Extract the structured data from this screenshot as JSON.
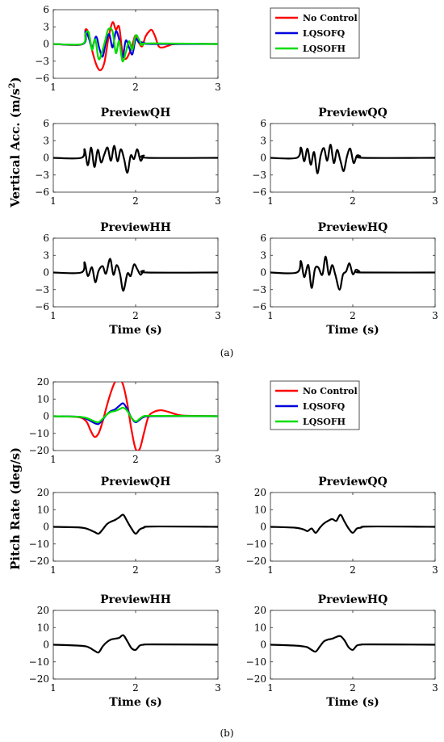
{
  "figure": {
    "caption_a": "(a)",
    "caption_b": "(b)",
    "ylabel_a": "Vertical Acc. (m/s",
    "ylabel_a_sup": "2",
    "ylabel_a_end": ")",
    "ylabel_b": "Pitch Rate (deg/s)"
  },
  "chart_data": [
    {
      "id": "a-main",
      "type": "line",
      "title": "",
      "xlabel": "",
      "ylabel": "Vertical Acc. (m/s²)",
      "xlim": [
        1,
        3
      ],
      "ylim": [
        -6,
        6
      ],
      "xticks": [
        1,
        2,
        3
      ],
      "yticks": [
        -6,
        -3,
        0,
        3,
        6
      ],
      "legend": "right",
      "series": [
        {
          "name": "No Control",
          "color": "#ff0000",
          "x": [
            1.0,
            1.36,
            1.39,
            1.43,
            1.47,
            1.52,
            1.57,
            1.62,
            1.67,
            1.72,
            1.76,
            1.8,
            1.84,
            1.88,
            1.93,
            1.97,
            2.0,
            2.04,
            2.08,
            2.12,
            2.17,
            2.2,
            2.24,
            2.28,
            2.33,
            2.4,
            2.5,
            3.0
          ],
          "y": [
            0,
            0,
            2.5,
            1.8,
            -1.0,
            -3.5,
            -4.6,
            -3.3,
            1.0,
            3.8,
            2.5,
            3.0,
            -1.5,
            -2.6,
            -1.4,
            0.3,
            1.5,
            0.2,
            -0.4,
            1.3,
            2.3,
            2.4,
            1.2,
            -0.4,
            -0.6,
            -0.3,
            0,
            0
          ]
        },
        {
          "name": "LQSOFQ",
          "color": "#0000dd",
          "x": [
            1.0,
            1.36,
            1.39,
            1.43,
            1.47,
            1.52,
            1.56,
            1.6,
            1.64,
            1.68,
            1.72,
            1.76,
            1.8,
            1.84,
            1.88,
            1.92,
            1.96,
            2.0,
            2.04,
            2.08,
            2.12,
            2.2,
            3.0
          ],
          "y": [
            0,
            0,
            2.2,
            1.1,
            -0.6,
            1.3,
            -0.8,
            -2.2,
            0.4,
            1.7,
            -0.6,
            2.2,
            0.8,
            -2.4,
            0.6,
            -0.6,
            -1.8,
            0.8,
            0.3,
            0.3,
            0.1,
            0,
            0
          ]
        },
        {
          "name": "LQSOFH",
          "color": "#00dd00",
          "x": [
            1.0,
            1.35,
            1.39,
            1.43,
            1.47,
            1.51,
            1.55,
            1.59,
            1.63,
            1.67,
            1.72,
            1.76,
            1.8,
            1.84,
            1.88,
            1.92,
            1.96,
            2.0,
            2.04,
            2.08,
            2.14,
            3.0
          ],
          "y": [
            0,
            0,
            1.8,
            2.0,
            -1.0,
            0.8,
            -2.6,
            -1.5,
            0.6,
            2.6,
            2.2,
            -1.6,
            0.5,
            -3.0,
            -1.5,
            0.5,
            -1.0,
            1.5,
            0.8,
            -0.2,
            0.1,
            0
          ]
        }
      ]
    },
    {
      "id": "a-qh",
      "type": "line",
      "title": "PreviewQH",
      "xlabel": "",
      "ylabel": "",
      "xlim": [
        1,
        3
      ],
      "ylim": [
        -6,
        6
      ],
      "xticks": [
        1,
        2,
        3
      ],
      "yticks": [
        -6,
        -3,
        0,
        3,
        6
      ],
      "series": [
        {
          "color": "#000000",
          "x": [
            1.0,
            1.34,
            1.38,
            1.42,
            1.46,
            1.5,
            1.54,
            1.58,
            1.62,
            1.66,
            1.7,
            1.74,
            1.78,
            1.82,
            1.86,
            1.9,
            1.94,
            1.98,
            2.02,
            2.06,
            2.1,
            2.14,
            3.0
          ],
          "y": [
            0,
            0,
            1.5,
            -1.3,
            1.8,
            -1.6,
            1.4,
            -0.8,
            0.6,
            1.8,
            -0.5,
            2.1,
            -0.6,
            1.5,
            -0.2,
            -2.6,
            0.4,
            -0.2,
            1.5,
            -0.5,
            0.4,
            0,
            0
          ]
        }
      ]
    },
    {
      "id": "a-qq",
      "type": "line",
      "title": "PreviewQQ",
      "xlabel": "",
      "ylabel": "",
      "xlim": [
        1,
        3
      ],
      "ylim": [
        -6,
        6
      ],
      "xticks": [
        1,
        2,
        3
      ],
      "yticks": [
        -6,
        -3,
        0,
        3,
        6
      ],
      "series": [
        {
          "color": "#000000",
          "x": [
            1.0,
            1.32,
            1.37,
            1.41,
            1.45,
            1.49,
            1.53,
            1.57,
            1.61,
            1.65,
            1.69,
            1.73,
            1.77,
            1.81,
            1.85,
            1.89,
            1.93,
            1.97,
            2.01,
            2.05,
            2.09,
            2.13,
            3.0
          ],
          "y": [
            0,
            0,
            1.8,
            -0.6,
            1.6,
            -1.2,
            1.0,
            -2.7,
            0.4,
            1.7,
            -0.5,
            2.3,
            -0.9,
            1.4,
            -0.5,
            -2.3,
            0.3,
            1.6,
            -0.9,
            0.4,
            0.3,
            0,
            0
          ]
        }
      ]
    },
    {
      "id": "a-hh",
      "type": "line",
      "title": "PreviewHH",
      "xlabel": "Time (s)",
      "ylabel": "",
      "xlim": [
        1,
        3
      ],
      "ylim": [
        -6,
        6
      ],
      "xticks": [
        1,
        2,
        3
      ],
      "yticks": [
        -6,
        -3,
        0,
        3,
        6
      ],
      "series": [
        {
          "color": "#000000",
          "x": [
            1.0,
            1.34,
            1.38,
            1.42,
            1.47,
            1.51,
            1.55,
            1.6,
            1.64,
            1.69,
            1.73,
            1.77,
            1.81,
            1.85,
            1.9,
            1.94,
            1.98,
            2.02,
            2.06,
            2.1,
            2.14,
            3.0
          ],
          "y": [
            0,
            0,
            1.8,
            -0.6,
            0.9,
            -1.7,
            0.3,
            1.1,
            -0.2,
            2.4,
            -0.4,
            1.3,
            -0.2,
            -3.2,
            -0.2,
            -0.6,
            1.4,
            0.6,
            -0.4,
            0.3,
            0,
            0
          ]
        }
      ]
    },
    {
      "id": "a-hq",
      "type": "line",
      "title": "PreviewHQ",
      "xlabel": "Time (s)",
      "ylabel": "",
      "xlim": [
        1,
        3
      ],
      "ylim": [
        -6,
        6
      ],
      "xticks": [
        1,
        2,
        3
      ],
      "yticks": [
        -6,
        -3,
        0,
        3,
        6
      ],
      "series": [
        {
          "color": "#000000",
          "x": [
            1.0,
            1.32,
            1.37,
            1.41,
            1.46,
            1.5,
            1.54,
            1.58,
            1.63,
            1.67,
            1.71,
            1.75,
            1.79,
            1.84,
            1.88,
            1.92,
            1.96,
            2.0,
            2.04,
            2.08,
            2.12,
            3.0
          ],
          "y": [
            0,
            0,
            2.0,
            -0.8,
            1.3,
            -2.7,
            0.6,
            0.9,
            -0.4,
            2.8,
            -0.4,
            1.3,
            -0.5,
            -3.0,
            -0.4,
            0.2,
            1.6,
            -0.3,
            0.5,
            0.2,
            0,
            0
          ]
        }
      ]
    },
    {
      "id": "b-main",
      "type": "line",
      "title": "",
      "xlabel": "",
      "ylabel": "Pitch Rate (deg/s)",
      "xlim": [
        1,
        3
      ],
      "ylim": [
        -20,
        20
      ],
      "xticks": [
        1,
        2,
        3
      ],
      "yticks": [
        -20,
        -10,
        0,
        10,
        20
      ],
      "legend": "right",
      "series": [
        {
          "name": "No Control",
          "color": "#ff0000",
          "x": [
            1.0,
            1.3,
            1.4,
            1.45,
            1.5,
            1.55,
            1.6,
            1.65,
            1.7,
            1.75,
            1.8,
            1.85,
            1.9,
            1.95,
            2.0,
            2.05,
            2.1,
            2.15,
            2.2,
            2.3,
            2.4,
            2.5,
            2.6,
            3.0
          ],
          "y": [
            0,
            -0.5,
            -3,
            -8,
            -12,
            -10,
            -3,
            6,
            14,
            20,
            22,
            18,
            7,
            -8,
            -19,
            -19,
            -10,
            -1,
            2,
            3.5,
            2.5,
            1,
            0.3,
            0
          ]
        },
        {
          "name": "LQSOFQ",
          "color": "#0000dd",
          "x": [
            1.0,
            1.3,
            1.4,
            1.5,
            1.55,
            1.6,
            1.65,
            1.7,
            1.75,
            1.8,
            1.85,
            1.9,
            1.95,
            2.0,
            2.05,
            2.1,
            2.2,
            3.0
          ],
          "y": [
            0,
            -0.3,
            -1.5,
            -4,
            -4.5,
            -2,
            1,
            3,
            4,
            6,
            7.5,
            4,
            -1,
            -3.5,
            -2,
            -0.5,
            0,
            0
          ]
        },
        {
          "name": "LQSOFH",
          "color": "#00dd00",
          "x": [
            1.0,
            1.3,
            1.4,
            1.5,
            1.55,
            1.6,
            1.65,
            1.7,
            1.75,
            1.8,
            1.85,
            1.9,
            1.95,
            2.0,
            2.05,
            2.1,
            2.2,
            3.0
          ],
          "y": [
            0,
            -0.3,
            -1,
            -3,
            -3.5,
            -1.5,
            1,
            2.5,
            3,
            4,
            5,
            3,
            -1,
            -3,
            -1.5,
            0,
            0.2,
            0
          ]
        }
      ]
    },
    {
      "id": "b-qh",
      "type": "line",
      "title": "PreviewQH",
      "xlabel": "",
      "ylabel": "",
      "xlim": [
        1,
        3
      ],
      "ylim": [
        -20,
        20
      ],
      "xticks": [
        1,
        2,
        3
      ],
      "yticks": [
        -20,
        -10,
        0,
        10,
        20
      ],
      "series": [
        {
          "color": "#000000",
          "x": [
            1.0,
            1.3,
            1.4,
            1.5,
            1.55,
            1.6,
            1.65,
            1.7,
            1.75,
            1.8,
            1.85,
            1.9,
            1.95,
            2.0,
            2.05,
            2.1,
            2.2,
            3.0
          ],
          "y": [
            0,
            -0.3,
            -1,
            -3,
            -4,
            -1.5,
            1.5,
            3,
            4,
            5.5,
            7,
            3,
            -1,
            -4,
            -1.5,
            -0.5,
            0.2,
            0
          ]
        }
      ]
    },
    {
      "id": "b-qq",
      "type": "line",
      "title": "PreviewQQ",
      "xlabel": "",
      "ylabel": "",
      "xlim": [
        1,
        3
      ],
      "ylim": [
        -20,
        20
      ],
      "xticks": [
        1,
        2,
        3
      ],
      "yticks": [
        -20,
        -10,
        0,
        10,
        20
      ],
      "series": [
        {
          "color": "#000000",
          "x": [
            1.0,
            1.3,
            1.4,
            1.45,
            1.5,
            1.55,
            1.6,
            1.65,
            1.7,
            1.75,
            1.8,
            1.85,
            1.9,
            1.95,
            2.0,
            2.05,
            2.1,
            2.2,
            3.0
          ],
          "y": [
            0,
            -0.5,
            -1.5,
            -2.5,
            -1,
            -3.5,
            -0.5,
            2,
            3.5,
            4.5,
            3.5,
            7,
            3,
            -1,
            -3.5,
            -1,
            -0.5,
            0.2,
            0
          ]
        }
      ]
    },
    {
      "id": "b-hh",
      "type": "line",
      "title": "PreviewHH",
      "xlabel": "Time (s)",
      "ylabel": "",
      "xlim": [
        1,
        3
      ],
      "ylim": [
        -20,
        20
      ],
      "xticks": [
        1,
        2,
        3
      ],
      "yticks": [
        -20,
        -10,
        0,
        10,
        20
      ],
      "series": [
        {
          "color": "#000000",
          "x": [
            1.0,
            1.3,
            1.4,
            1.45,
            1.5,
            1.55,
            1.6,
            1.65,
            1.7,
            1.75,
            1.8,
            1.85,
            1.9,
            1.95,
            2.0,
            2.05,
            2.1,
            2.2,
            3.0
          ],
          "y": [
            0,
            -0.5,
            -1,
            -2,
            -3.5,
            -4.5,
            -1,
            1.5,
            3,
            3.5,
            4,
            5.5,
            2,
            -2,
            -3,
            -0.5,
            0,
            0.2,
            0
          ]
        }
      ]
    },
    {
      "id": "b-hq",
      "type": "line",
      "title": "PreviewHQ",
      "xlabel": "Time (s)",
      "ylabel": "",
      "xlim": [
        1,
        3
      ],
      "ylim": [
        -20,
        20
      ],
      "xticks": [
        1,
        2,
        3
      ],
      "yticks": [
        -20,
        -10,
        0,
        10,
        20
      ],
      "series": [
        {
          "color": "#000000",
          "x": [
            1.0,
            1.3,
            1.4,
            1.45,
            1.5,
            1.55,
            1.6,
            1.65,
            1.7,
            1.75,
            1.8,
            1.85,
            1.9,
            1.95,
            2.0,
            2.05,
            2.1,
            2.2,
            3.0
          ],
          "y": [
            0,
            -0.5,
            -1,
            -1.5,
            -3,
            -4,
            -1,
            2,
            3,
            3.5,
            4.5,
            5,
            2.5,
            -1.5,
            -3,
            -0.5,
            0,
            0.2,
            0
          ]
        }
      ]
    }
  ]
}
